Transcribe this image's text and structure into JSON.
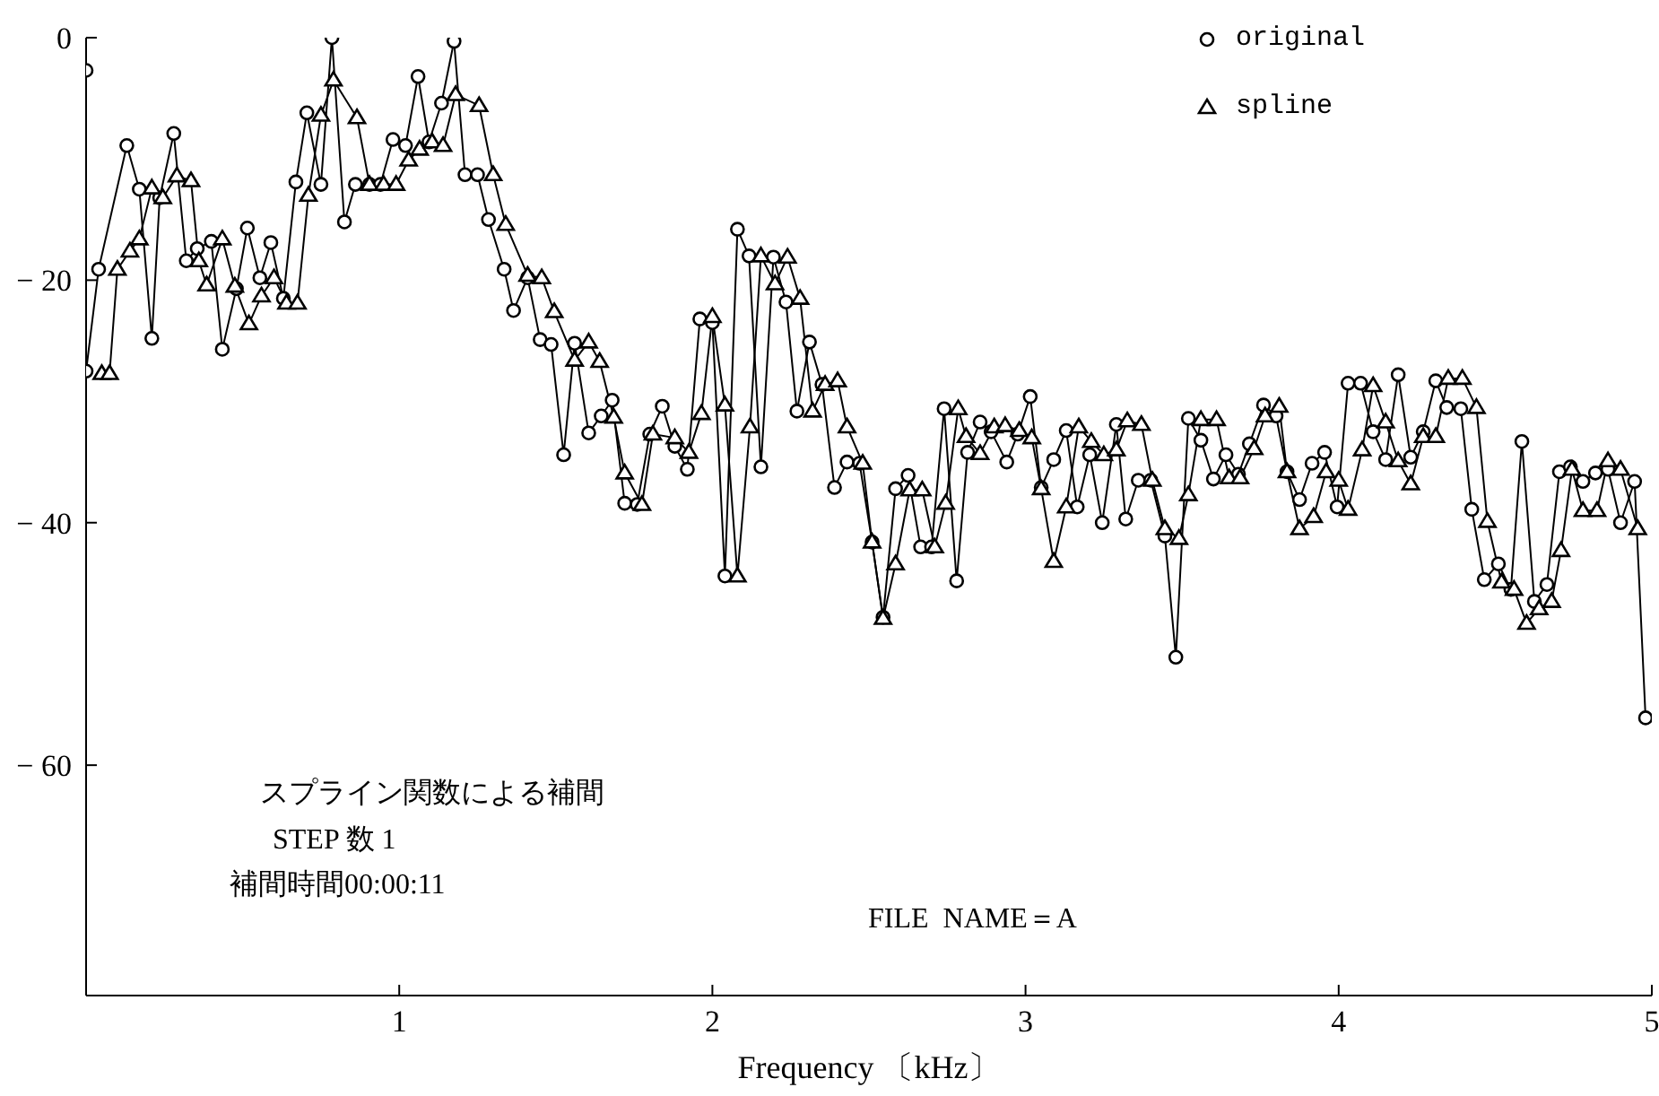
{
  "chart_data": {
    "type": "line",
    "xlabel": "Frequency 〔kHz〕",
    "xlim": [
      0,
      5
    ],
    "xticks": [
      1,
      2,
      3,
      4,
      5
    ],
    "ylim": [
      -79,
      0
    ],
    "yticks": [
      0,
      -20,
      -40,
      -60
    ],
    "grid": false,
    "legend": "top right",
    "annotations": [
      "スプライン関数による補間",
      "STEP 数 1",
      "補間時間00:00:11",
      "FILE  NAME＝A"
    ],
    "series": [
      {
        "name": "original",
        "color": "#000000",
        "marker": "circle",
        "x": [
          0.0,
          0.0,
          0.04,
          0.13,
          0.17,
          0.21,
          0.235,
          0.28,
          0.32,
          0.355,
          0.4,
          0.435,
          0.48,
          0.515,
          0.555,
          0.59,
          0.63,
          0.67,
          0.705,
          0.75,
          0.785,
          0.825,
          0.86,
          0.905,
          0.94,
          0.98,
          1.02,
          1.06,
          1.095,
          1.135,
          1.175,
          1.21,
          1.25,
          1.285,
          1.335,
          1.365,
          1.41,
          1.45,
          1.485,
          1.525,
          1.56,
          1.605,
          1.645,
          1.68,
          1.72,
          1.76,
          1.8,
          1.84,
          1.88,
          1.92,
          1.96,
          2.0,
          2.04,
          2.08,
          2.117,
          2.155,
          2.195,
          2.235,
          2.27,
          2.31,
          2.35,
          2.39,
          2.43,
          2.47,
          2.51,
          2.545,
          2.585,
          2.625,
          2.665,
          2.7,
          2.74,
          2.78,
          2.815,
          2.855,
          2.89,
          2.94,
          2.975,
          3.015,
          3.05,
          3.09,
          3.13,
          3.165,
          3.205,
          3.245,
          3.29,
          3.32,
          3.36,
          3.4,
          3.445,
          3.48,
          3.52,
          3.56,
          3.6,
          3.64,
          3.68,
          3.715,
          3.76,
          3.8,
          3.835,
          3.875,
          3.915,
          3.955,
          3.995,
          4.03,
          4.07,
          4.11,
          4.15,
          4.19,
          4.23,
          4.27,
          4.31,
          4.345,
          4.39,
          4.425,
          4.465,
          4.51,
          4.55,
          4.585,
          4.625,
          4.665,
          4.705,
          4.74,
          4.78,
          4.82,
          4.86,
          4.9,
          4.945,
          4.98
        ],
        "values": [
          -2.7,
          -27.5,
          -19.1,
          -8.9,
          -12.5,
          -24.8,
          -13.2,
          -7.9,
          -18.4,
          -17.4,
          -16.8,
          -25.7,
          -20.7,
          -15.7,
          -19.8,
          -16.9,
          -21.5,
          -11.9,
          -6.2,
          -12.1,
          0,
          -15.2,
          -12.1,
          -12.1,
          -12.1,
          -8.4,
          -8.9,
          -3.2,
          -8.6,
          -5.4,
          -0.3,
          -11.3,
          -11.3,
          -15,
          -19.1,
          -22.5,
          -19.8,
          -24.9,
          -25.3,
          -34.4,
          -25.2,
          -32.6,
          -31.2,
          -29.9,
          -38.4,
          -38.5,
          -32.7,
          -30.4,
          -33.7,
          -35.6,
          -23.2,
          -23.5,
          -44.4,
          -15.8,
          -18,
          -35.4,
          -18.1,
          -21.8,
          -30.8,
          -25.1,
          -28.6,
          -37.1,
          -35,
          -35.1,
          -41.6,
          -47.8,
          -37.2,
          -36.1,
          -42,
          -42,
          -30.6,
          -44.8,
          -34.2,
          -31.7,
          -32.5,
          -35,
          -32.7,
          -29.6,
          -37.1,
          -34.8,
          -32.4,
          -38.7,
          -34.4,
          -40,
          -31.9,
          -39.7,
          -36.5,
          -36.5,
          -41.1,
          -51.1,
          -31.4,
          -33.2,
          -36.4,
          -34.4,
          -36,
          -33.5,
          -30.3,
          -31.2,
          -35.8,
          -38.1,
          -35.1,
          -34.2,
          -38.7,
          -28.5,
          -28.5,
          -32.5,
          -34.8,
          -27.8,
          -34.6,
          -32.5,
          -28.3,
          -30.5,
          -30.6,
          -38.9,
          -44.7,
          -43.4,
          -45.5,
          -33.3,
          -46.5,
          -45.1,
          -35.8,
          -35.4,
          -36.6,
          -35.9,
          -35.6,
          -40,
          -36.6,
          -56.1
        ]
      },
      {
        "name": "spline",
        "color": "#000000",
        "marker": "triangle",
        "x": [
          0.05,
          0.075,
          0.1,
          0.14,
          0.17,
          0.21,
          0.245,
          0.29,
          0.335,
          0.36,
          0.385,
          0.435,
          0.475,
          0.52,
          0.56,
          0.6,
          0.64,
          0.675,
          0.71,
          0.75,
          0.79,
          0.865,
          0.905,
          0.95,
          0.99,
          1.03,
          1.065,
          1.105,
          1.14,
          1.18,
          1.255,
          1.3,
          1.34,
          1.41,
          1.455,
          1.495,
          1.56,
          1.605,
          1.64,
          1.685,
          1.72,
          1.775,
          1.81,
          1.88,
          1.925,
          1.965,
          2.0,
          2.04,
          2.08,
          2.12,
          2.155,
          2.2,
          2.24,
          2.28,
          2.32,
          2.36,
          2.4,
          2.43,
          2.48,
          2.51,
          2.545,
          2.585,
          2.63,
          2.67,
          2.71,
          2.745,
          2.785,
          2.81,
          2.855,
          2.9,
          2.935,
          2.98,
          3.02,
          3.05,
          3.09,
          3.13,
          3.17,
          3.21,
          3.25,
          3.29,
          3.325,
          3.37,
          3.405,
          3.445,
          3.49,
          3.52,
          3.56,
          3.61,
          3.65,
          3.685,
          3.73,
          3.765,
          3.81,
          3.835,
          3.875,
          3.92,
          3.96,
          4.0,
          4.03,
          4.075,
          4.11,
          4.15,
          4.19,
          4.23,
          4.27,
          4.31,
          4.35,
          4.395,
          4.44,
          4.475,
          4.52,
          4.56,
          4.6,
          4.64,
          4.68,
          4.71,
          4.745,
          4.78,
          4.825,
          4.86,
          4.9,
          4.955
        ],
        "values": [
          -27.7,
          -27.7,
          -19.1,
          -17.6,
          -16.6,
          -12.4,
          -13.2,
          -11.4,
          -11.8,
          -18.4,
          -20.4,
          -16.6,
          -20.5,
          -23.6,
          -21.3,
          -19.8,
          -21.9,
          -21.9,
          -13,
          -6.4,
          -3.5,
          -6.6,
          -12.1,
          -12.1,
          -12.1,
          -10.1,
          -9.2,
          -8.6,
          -8.9,
          -4.7,
          -5.6,
          -11.3,
          -15.4,
          -19.6,
          -19.8,
          -22.6,
          -26.6,
          -25.1,
          -26.7,
          -31.3,
          -35.9,
          -38.5,
          -32.7,
          -33,
          -34.2,
          -31,
          -23,
          -30.3,
          -44.4,
          -32.1,
          -18,
          -20.3,
          -18.1,
          -21.5,
          -30.8,
          -28.6,
          -28.3,
          -32.1,
          -35.1,
          -41.6,
          -47.9,
          -43.4,
          -37.3,
          -37.3,
          -42,
          -38.4,
          -30.6,
          -32.9,
          -34.3,
          -32.1,
          -32,
          -32.4,
          -33,
          -37.2,
          -43.2,
          -38.7,
          -32.1,
          -33.3,
          -34.4,
          -34,
          -31.6,
          -31.9,
          -36.5,
          -40.5,
          -41.3,
          -37.7,
          -31.5,
          -31.5,
          -36.3,
          -36.3,
          -33.9,
          -31.2,
          -30.4,
          -35.8,
          -40.5,
          -39.5,
          -35.8,
          -36.5,
          -38.9,
          -34,
          -28.7,
          -31.7,
          -34.9,
          -36.8,
          -32.9,
          -32.9,
          -28.1,
          -28.1,
          -30.5,
          -39.9,
          -44.9,
          -45.5,
          -48.3,
          -47.1,
          -46.5,
          -42.3,
          -35.6,
          -39,
          -39,
          -34.9,
          -35.6,
          -40.5
        ]
      }
    ]
  }
}
